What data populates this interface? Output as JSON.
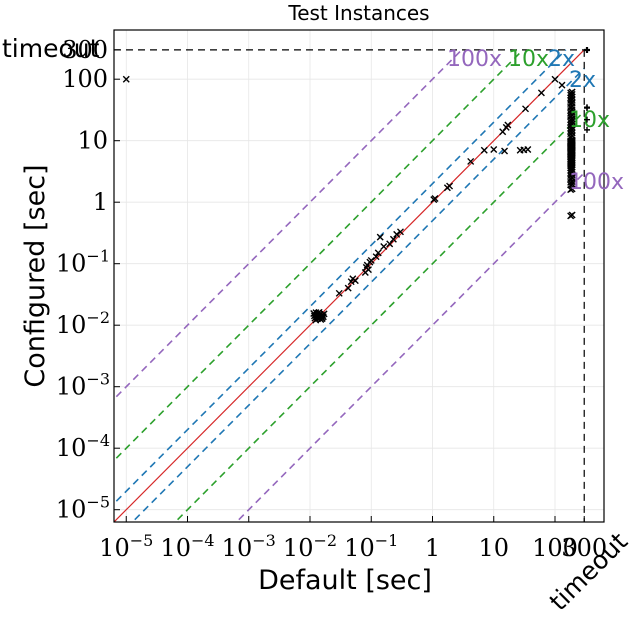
{
  "chart_data": {
    "type": "scatter",
    "title": "Test Instances",
    "xlabel": "Default [sec]",
    "ylabel": "Configured [sec]",
    "scale": "log",
    "xlim": [
      1e-05,
      1000
    ],
    "ylim": [
      1e-05,
      1000
    ],
    "cutoff": 300,
    "grid": true,
    "x_ticks": [
      {
        "v": 1e-05,
        "base": "10",
        "exp": "−5"
      },
      {
        "v": 0.0001,
        "base": "10",
        "exp": "−4"
      },
      {
        "v": 0.001,
        "base": "10",
        "exp": "−3"
      },
      {
        "v": 0.01,
        "base": "10",
        "exp": "−2"
      },
      {
        "v": 0.1,
        "base": "10",
        "exp": "−1"
      },
      {
        "v": 1,
        "base": "1",
        "exp": ""
      },
      {
        "v": 10,
        "base": "10",
        "exp": ""
      },
      {
        "v": 100,
        "base": "100",
        "exp": ""
      },
      {
        "v": 300,
        "base": "300",
        "exp": ""
      }
    ],
    "y_ticks": [
      {
        "v": 1e-05,
        "base": "10",
        "exp": "−5"
      },
      {
        "v": 0.0001,
        "base": "10",
        "exp": "−4"
      },
      {
        "v": 0.001,
        "base": "10",
        "exp": "−3"
      },
      {
        "v": 0.01,
        "base": "10",
        "exp": "−2"
      },
      {
        "v": 0.1,
        "base": "10",
        "exp": "−1"
      },
      {
        "v": 1,
        "base": "1",
        "exp": ""
      },
      {
        "v": 10,
        "base": "10",
        "exp": ""
      },
      {
        "v": 100,
        "base": "100",
        "exp": ""
      },
      {
        "v": 300,
        "base": "300",
        "exp": ""
      }
    ],
    "timeout_label_x": "timeout",
    "timeout_label_y": "timeout",
    "reference_lines": [
      {
        "factor": 2,
        "label": "2x",
        "color": "#1f77b4"
      },
      {
        "factor": 10,
        "label": "10x",
        "color": "#2ca02c"
      },
      {
        "factor": 100,
        "label": "100x",
        "color": "#9467bd"
      }
    ],
    "diagonal_color": "#d62728",
    "points": [
      [
        1e-05,
        100
      ],
      [
        0.0115,
        0.0155
      ],
      [
        0.012,
        0.013
      ],
      [
        0.0125,
        0.016
      ],
      [
        0.0128,
        0.0135
      ],
      [
        0.013,
        0.0148
      ],
      [
        0.0133,
        0.0127
      ],
      [
        0.0136,
        0.0158
      ],
      [
        0.014,
        0.0139
      ],
      [
        0.0143,
        0.0131
      ],
      [
        0.0146,
        0.0151
      ],
      [
        0.015,
        0.0124
      ],
      [
        0.0153,
        0.0143
      ],
      [
        0.0157,
        0.0133
      ],
      [
        0.016,
        0.0147
      ],
      [
        0.0165,
        0.0137
      ],
      [
        0.017,
        0.0153
      ],
      [
        0.0118,
        0.0142
      ],
      [
        0.0124,
        0.0121
      ],
      [
        0.0141,
        0.0162
      ],
      [
        0.0158,
        0.0128
      ],
      [
        0.03,
        0.033
      ],
      [
        0.042,
        0.04
      ],
      [
        0.047,
        0.051
      ],
      [
        0.05,
        0.057
      ],
      [
        0.055,
        0.053
      ],
      [
        0.08,
        0.072
      ],
      [
        0.083,
        0.087
      ],
      [
        0.086,
        0.095
      ],
      [
        0.09,
        0.08
      ],
      [
        0.095,
        0.106
      ],
      [
        0.1,
        0.113
      ],
      [
        0.12,
        0.13
      ],
      [
        0.13,
        0.15
      ],
      [
        0.14,
        0.27
      ],
      [
        0.16,
        0.19
      ],
      [
        0.2,
        0.21
      ],
      [
        0.23,
        0.25
      ],
      [
        0.26,
        0.3
      ],
      [
        0.3,
        0.33
      ],
      [
        1.05,
        1.1
      ],
      [
        1.1,
        1.15
      ],
      [
        1.75,
        1.72
      ],
      [
        1.9,
        1.83
      ],
      [
        4.2,
        4.6
      ],
      [
        7,
        7
      ],
      [
        10,
        7.2
      ],
      [
        14,
        14
      ],
      [
        15,
        6.8
      ],
      [
        16,
        16.5
      ],
      [
        17,
        18
      ],
      [
        27,
        7
      ],
      [
        31,
        7.1
      ],
      [
        33,
        33
      ],
      [
        36,
        7.2
      ],
      [
        60,
        60
      ],
      [
        100,
        100
      ],
      [
        130,
        80
      ]
    ],
    "vertical_cluster": {
      "x": 180,
      "y_values": [
        0.6,
        1.6,
        1.9,
        2.1,
        2.4,
        2.7,
        3.0,
        3.3,
        3.6,
        3.9,
        4.2,
        4.5,
        4.8,
        5.1,
        5.4,
        5.7,
        6.0,
        6.3,
        6.6,
        6.9,
        7.2,
        7.5,
        7.8,
        8.1,
        8.4,
        8.7,
        9.0,
        9.3,
        9.6,
        10.0,
        11.5,
        13,
        14.5,
        16,
        18,
        20,
        22,
        25,
        28,
        31,
        35,
        40,
        45,
        50,
        55,
        60
      ]
    },
    "timeout_x_points_configured": [
      35,
      22,
      15
    ],
    "timeout_y_points_default": []
  }
}
